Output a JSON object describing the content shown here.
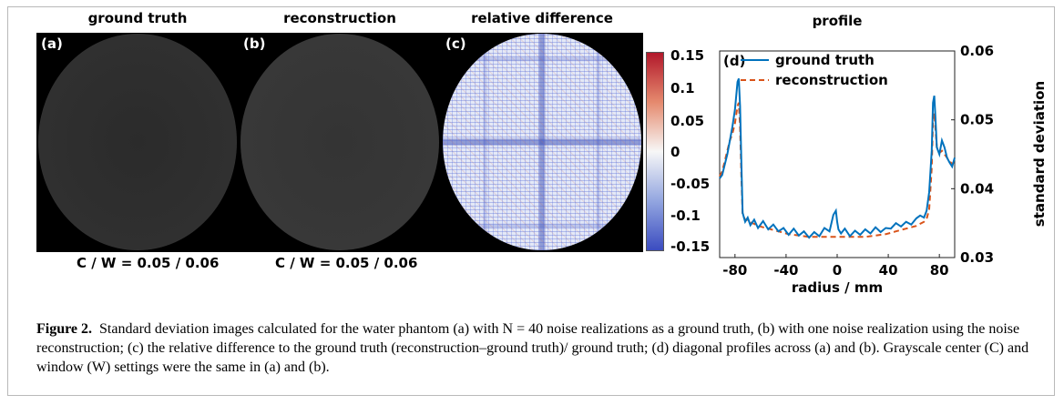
{
  "panels": [
    {
      "title": "ground truth",
      "label": "(a)",
      "cw": "C / W = 0.05 / 0.06"
    },
    {
      "title": "reconstruction",
      "label": "(b)",
      "cw": "C / W = 0.05 / 0.06"
    },
    {
      "title": "relative difference",
      "label": "(c)"
    }
  ],
  "colorbar": {
    "ticks": [
      "0.15",
      "0.1",
      "0.05",
      "0",
      "-0.05",
      "-0.1",
      "-0.15"
    ],
    "colors": {
      "top": "#b2182b",
      "mid": "#f7f7f7",
      "bottom": "#3b4cc0"
    }
  },
  "chart_data": {
    "type": "line",
    "title": "profile",
    "panel_label": "(d)",
    "xlabel": "radius / mm",
    "ylabel": "standard deviation",
    "xlim": [
      -92,
      92
    ],
    "ylim": [
      0.03,
      0.06
    ],
    "xticks": [
      "-80",
      "-40",
      "0",
      "40",
      "80"
    ],
    "yticks": [
      "0.03",
      "0.04",
      "0.05",
      "0.06"
    ],
    "legend": "top",
    "x": [
      -92,
      -90,
      -88,
      -86,
      -84,
      -82,
      -80,
      -78,
      -77,
      -76,
      -75,
      -74,
      -72,
      -70,
      -68,
      -65,
      -62,
      -58,
      -54,
      -50,
      -46,
      -42,
      -38,
      -34,
      -30,
      -26,
      -22,
      -18,
      -14,
      -10,
      -6,
      -3,
      -1,
      0,
      1,
      3,
      6,
      10,
      14,
      18,
      22,
      26,
      30,
      34,
      38,
      42,
      46,
      50,
      54,
      58,
      62,
      65,
      68,
      70,
      72,
      74,
      75,
      76,
      77,
      78,
      80,
      82,
      84,
      86,
      88,
      90,
      92
    ],
    "series": [
      {
        "name": "ground truth",
        "color": "#0072bd",
        "style": "solid",
        "values": [
          0.0415,
          0.042,
          0.0435,
          0.045,
          0.047,
          0.049,
          0.0515,
          0.0555,
          0.056,
          0.052,
          0.044,
          0.0365,
          0.0352,
          0.0358,
          0.0347,
          0.0355,
          0.0343,
          0.0353,
          0.0341,
          0.0348,
          0.0338,
          0.0343,
          0.0333,
          0.0342,
          0.0332,
          0.0338,
          0.0329,
          0.0337,
          0.0331,
          0.0343,
          0.0338,
          0.0362,
          0.0368,
          0.0352,
          0.0341,
          0.0335,
          0.0342,
          0.0331,
          0.0339,
          0.0333,
          0.0341,
          0.0335,
          0.0344,
          0.0337,
          0.0343,
          0.0342,
          0.035,
          0.0345,
          0.0352,
          0.0348,
          0.0357,
          0.0361,
          0.0358,
          0.0368,
          0.0395,
          0.0455,
          0.0525,
          0.0535,
          0.05,
          0.046,
          0.045,
          0.047,
          0.046,
          0.0445,
          0.0438,
          0.0432,
          0.0445
        ]
      },
      {
        "name": "reconstruction",
        "color": "#d95319",
        "style": "dashed",
        "values": [
          0.0418,
          0.0425,
          0.044,
          0.0455,
          0.047,
          0.048,
          0.0495,
          0.052,
          0.0525,
          0.049,
          0.042,
          0.0362,
          0.0355,
          0.0354,
          0.0351,
          0.0349,
          0.0346,
          0.0344,
          0.0342,
          0.034,
          0.0338,
          0.0336,
          0.0334,
          0.0333,
          0.0332,
          0.0331,
          0.033,
          0.033,
          0.033,
          0.033,
          0.033,
          0.033,
          0.033,
          0.033,
          0.033,
          0.033,
          0.033,
          0.033,
          0.033,
          0.033,
          0.033,
          0.0331,
          0.0332,
          0.0333,
          0.0334,
          0.0336,
          0.0338,
          0.034,
          0.0342,
          0.0344,
          0.0346,
          0.0349,
          0.0352,
          0.0356,
          0.037,
          0.043,
          0.05,
          0.051,
          0.0485,
          0.046,
          0.0452,
          0.0455,
          0.045,
          0.0445,
          0.044,
          0.0436,
          0.044
        ]
      }
    ]
  },
  "caption": {
    "label": "Figure 2.",
    "text": "Standard deviation images calculated for the water phantom (a) with N = 40 noise realizations as a ground truth, (b) with one noise realization using the noise reconstruction; (c) the relative difference to the ground truth (reconstruction–ground truth)/ ground truth; (d) diagonal profiles across (a) and (b). Grayscale center (C) and window (W) settings were the same in (a) and (b)."
  }
}
